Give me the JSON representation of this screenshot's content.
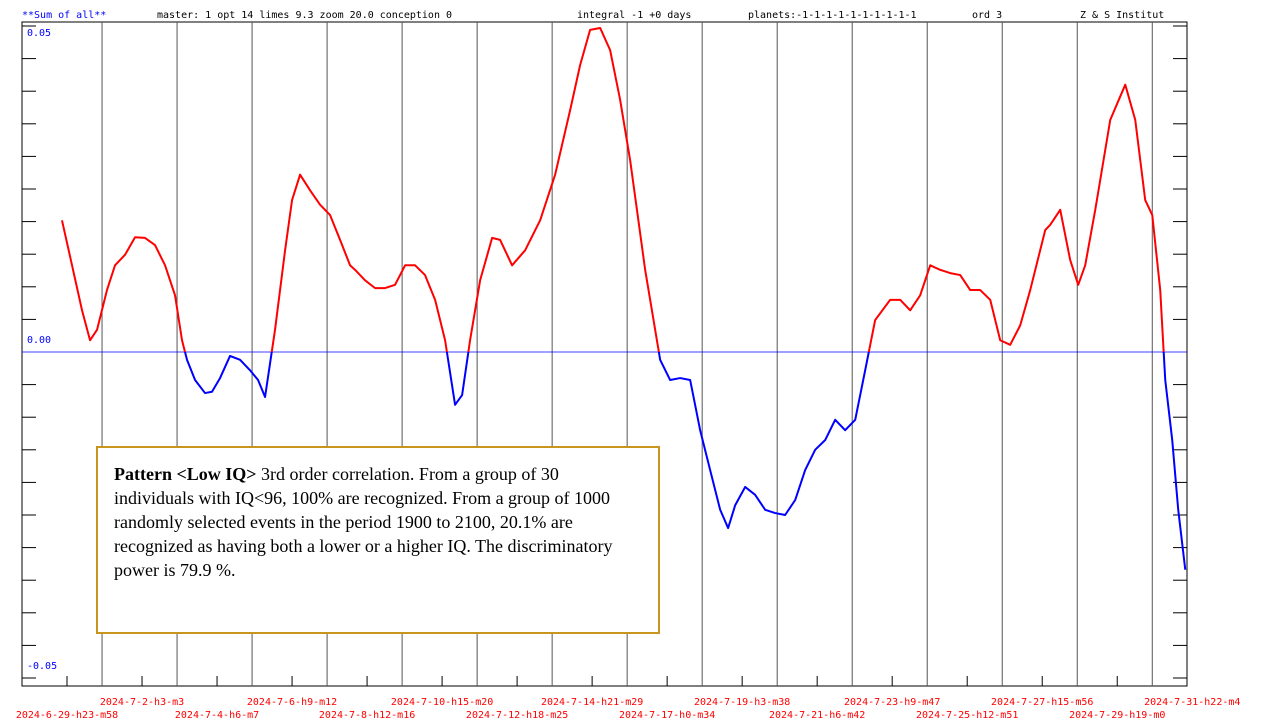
{
  "header": {
    "title": "**Sum of all**",
    "params": "master: 1  opt 14 limes 9.3 zoom 20.0 conception 0",
    "integral": "integral -1 +0 days",
    "planets": "planets:-1-1-1-1-1-1-1-1-1-1",
    "order": "ord 3",
    "institute": "Z & S Institut"
  },
  "chart_data": {
    "type": "line",
    "categories": [
      "2024-6-29-h23-m58",
      "2024-7-2-h3-m3",
      "2024-7-4-h6-m7",
      "2024-7-6-h9-m12",
      "2024-7-8-h12-m16",
      "2024-7-10-h15-m20",
      "2024-7-12-h18-m25",
      "2024-7-14-h21-m29",
      "2024-7-17-h0-m34",
      "2024-7-19-h3-m38",
      "2024-7-21-h6-m42",
      "2024-7-23-h9-m47",
      "2024-7-25-h12-m51",
      "2024-7-27-h15-m56",
      "2024-7-29-h19-m0",
      "2024-7-31-h22-m4"
    ],
    "xlim": [
      -0.6,
      14.93
    ],
    "ylim": [
      -0.05,
      0.05
    ],
    "yticks": [
      {
        "value": 0.05,
        "label": "0.05"
      },
      {
        "value": 0,
        "label": "0.00"
      },
      {
        "value": -0.05,
        "label": "-0.05"
      }
    ],
    "yticks_minor": [
      0.045,
      0.04,
      0.035,
      0.03,
      0.025,
      0.02,
      0.015,
      0.01,
      0.005,
      -0.005,
      -0.01,
      -0.015,
      -0.02,
      -0.025,
      -0.03,
      -0.035,
      -0.04,
      -0.045
    ],
    "color_above": "#ff0000",
    "color_below": "#0000ff",
    "grid": true,
    "x": [
      -0.067,
      0.067,
      0.2,
      0.307,
      0.4,
      0.533,
      0.64,
      0.773,
      0.907,
      1.04,
      1.173,
      1.307,
      1.44,
      1.533,
      1.6,
      1.707,
      1.84,
      1.933,
      2.04,
      2.173,
      2.307,
      2.44,
      2.547,
      2.64,
      2.773,
      2.907,
      3.0,
      3.107,
      3.24,
      3.373,
      3.507,
      3.64,
      3.773,
      3.84,
      3.973,
      4.107,
      4.24,
      4.373,
      4.507,
      4.64,
      4.773,
      4.907,
      5.04,
      5.173,
      5.267,
      5.373,
      5.507,
      5.667,
      5.773,
      5.933,
      6.107,
      6.307,
      6.507,
      6.707,
      6.84,
      6.973,
      7.107,
      7.24,
      7.373,
      7.507,
      7.707,
      7.907,
      8.04,
      8.173,
      8.307,
      8.44,
      8.573,
      8.707,
      8.813,
      8.907,
      9.04,
      9.173,
      9.307,
      9.44,
      9.573,
      9.707,
      9.84,
      9.973,
      10.107,
      10.24,
      10.373,
      10.507,
      10.64,
      10.773,
      10.973,
      11.107,
      11.24,
      11.373,
      11.507,
      11.64,
      11.773,
      11.907,
      12.04,
      12.173,
      12.307,
      12.44,
      12.573,
      12.707,
      12.84,
      13.04,
      13.107,
      13.24,
      13.373,
      13.48,
      13.573,
      13.707,
      13.907,
      14.107,
      14.24,
      14.373,
      14.467,
      14.573,
      14.64,
      14.733,
      14.813,
      14.907
    ],
    "values": [
      0.0202,
      0.0133,
      0.0064,
      0.0018,
      0.0034,
      0.0095,
      0.0133,
      0.0149,
      0.0176,
      0.0175,
      0.0164,
      0.0133,
      0.0087,
      0.0018,
      -0.0012,
      -0.0043,
      -0.0063,
      -0.0061,
      -0.004,
      -0.0006,
      -0.0012,
      -0.0028,
      -0.0043,
      -0.0069,
      0.0034,
      0.0156,
      0.0233,
      0.0272,
      0.0248,
      0.0226,
      0.021,
      0.0172,
      0.0133,
      0.0126,
      0.011,
      0.0098,
      0.0098,
      0.0103,
      0.0133,
      0.0133,
      0.0118,
      0.008,
      0.0018,
      -0.0081,
      -0.0066,
      0.0018,
      0.011,
      0.0175,
      0.0172,
      0.0133,
      0.0156,
      0.0202,
      0.0272,
      0.0371,
      0.044,
      0.0494,
      0.0497,
      0.0463,
      0.0387,
      0.0294,
      0.0126,
      -0.0012,
      -0.0043,
      -0.004,
      -0.0043,
      -0.012,
      -0.0181,
      -0.0242,
      -0.027,
      -0.0235,
      -0.0207,
      -0.0219,
      -0.0242,
      -0.0247,
      -0.025,
      -0.0227,
      -0.0181,
      -0.015,
      -0.0135,
      -0.0104,
      -0.012,
      -0.0104,
      -0.0028,
      0.0049,
      0.008,
      0.008,
      0.0064,
      0.0087,
      0.0133,
      0.0126,
      0.0121,
      0.0118,
      0.0095,
      0.0095,
      0.008,
      0.0018,
      0.0011,
      0.0041,
      0.0095,
      0.0187,
      0.0195,
      0.0218,
      0.0141,
      0.0103,
      0.0133,
      0.0218,
      0.0356,
      0.041,
      0.0356,
      0.0233,
      0.021,
      0.0095,
      -0.0043,
      -0.0135,
      -0.0242,
      -0.0334
    ],
    "annotation": {
      "bold": "Pattern <Low IQ>",
      "text": " 3rd order correlation. From a group of 30 individuals with IQ<96, 100% are recognized. From a group of 1000 randomly selected events in the period 1900 to 2100, 20.1% are recognized as having both a lower or a higher IQ. The discriminatory power is 79.9 %."
    }
  }
}
